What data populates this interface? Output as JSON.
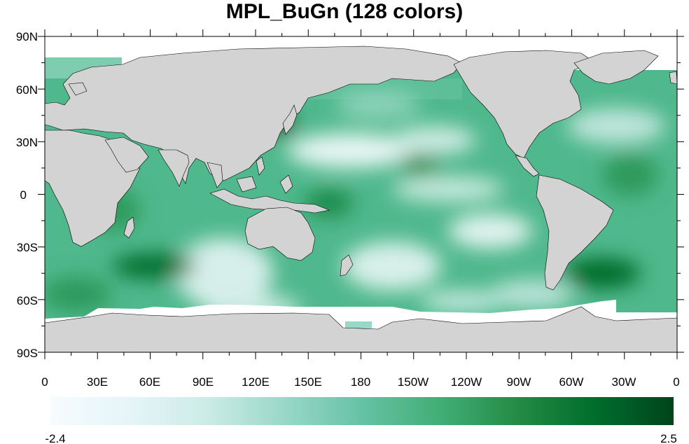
{
  "title": "MPL_BuGn (128 colors)",
  "colors": {
    "land": "#d3d3d3",
    "missing": "#ffffff",
    "ramp": [
      "#f7fcfd",
      "#e5f5f9",
      "#ccece6",
      "#99d8c9",
      "#66c2a4",
      "#41ae76",
      "#238b45",
      "#006d2c",
      "#00441b"
    ]
  },
  "lat_ticks": [
    "90N",
    "60N",
    "30N",
    "0",
    "30S",
    "60S",
    "90S"
  ],
  "lon_ticks": [
    "0",
    "30E",
    "60E",
    "90E",
    "120E",
    "150E",
    "180",
    "150W",
    "120W",
    "90W",
    "60W",
    "30W",
    "0"
  ],
  "colorbar": {
    "min_label": "-2.4",
    "max_label": "2.5",
    "colors": 128
  }
}
